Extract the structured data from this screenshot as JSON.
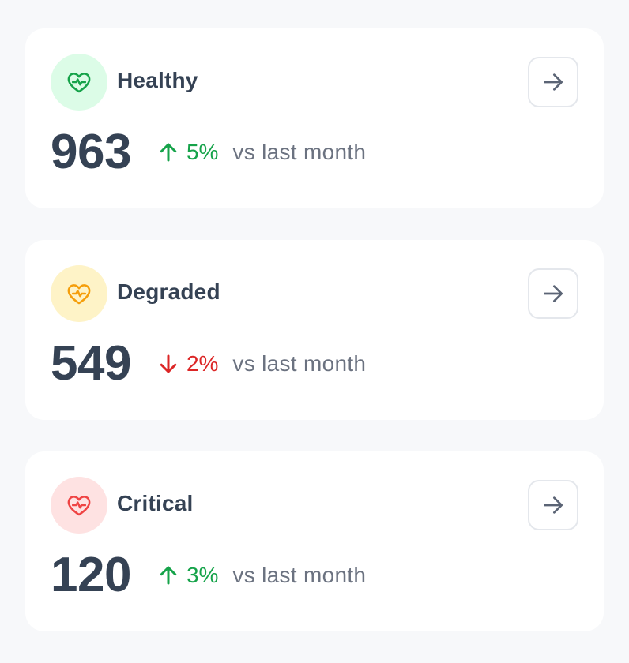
{
  "cards": [
    {
      "title": "Healthy",
      "count": "963",
      "trend_direction": "up",
      "trend_value": "5%",
      "comparison": "vs last month",
      "icon": "heart-pulse-icon",
      "icon_color": "#16a34a",
      "badge_color": "#dcfce7",
      "trend_color": "#16a34a"
    },
    {
      "title": "Degraded",
      "count": "549",
      "trend_direction": "down",
      "trend_value": "2%",
      "comparison": "vs last month",
      "icon": "heart-pulse-icon",
      "icon_color": "#f59e0b",
      "badge_color": "#fef3c7",
      "trend_color": "#dc2626"
    },
    {
      "title": "Critical",
      "count": "120",
      "trend_direction": "up",
      "trend_value": "3%",
      "comparison": "vs last month",
      "icon": "heart-pulse-icon",
      "icon_color": "#ef4444",
      "badge_color": "#fee2e2",
      "trend_color": "#16a34a"
    }
  ],
  "arrow_icon": "arrow-right-icon",
  "arrow_color": "#5b6475",
  "text_color": "#354254",
  "muted_color": "#6b7280"
}
